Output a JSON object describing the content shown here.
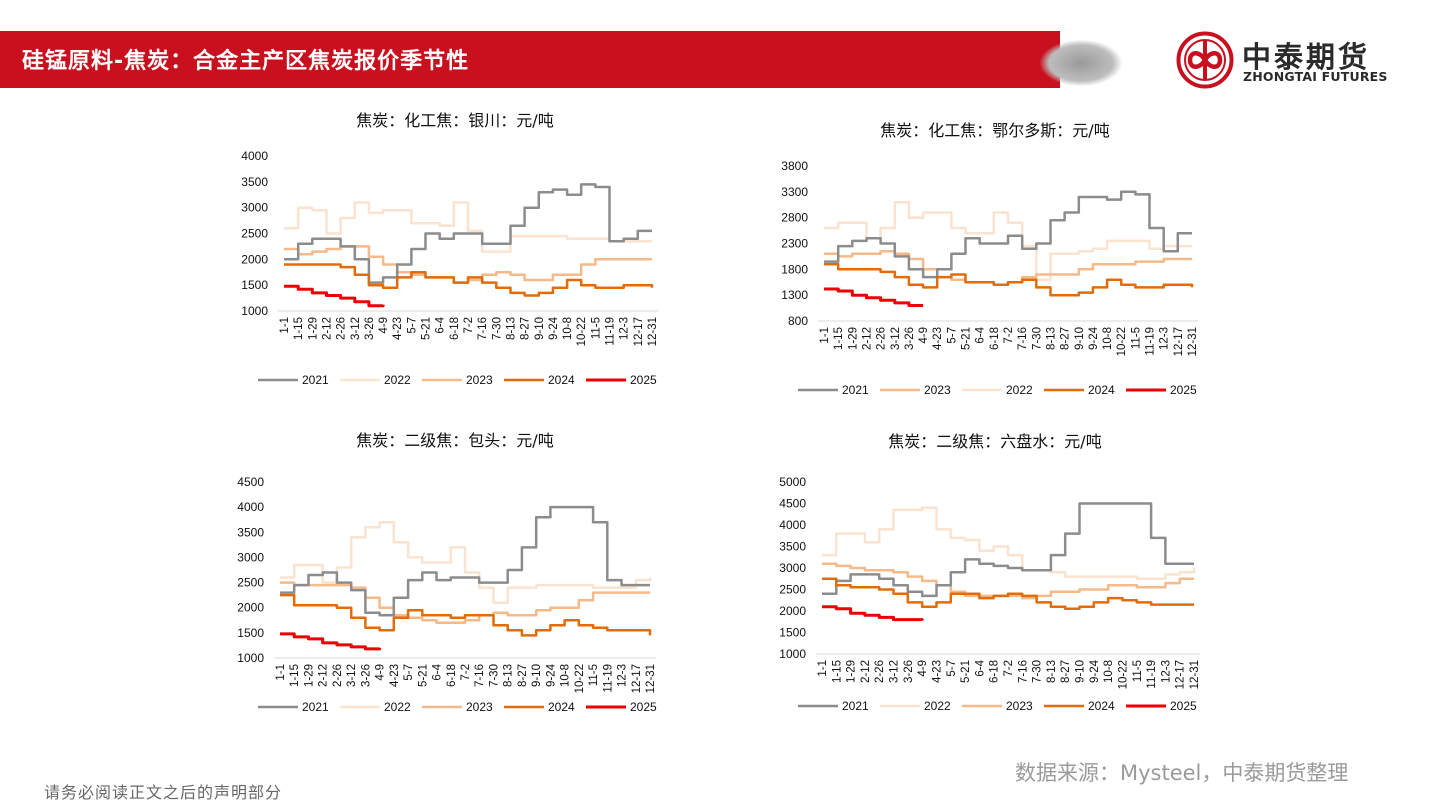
{
  "header": {
    "title": "硅锰原料-焦炭：合金主产区焦炭报价季节性"
  },
  "logo": {
    "name_cn": "中泰期货",
    "name_en": "ZHONGTAI FUTURES"
  },
  "footer": {
    "source": "数据来源：Mysteel，中泰期货整理",
    "disclaimer": "请务必阅读正文之后的声明部分"
  },
  "colors": {
    "2021": "#8c8c8c",
    "2022": "#fbe3cf",
    "2023": "#f5b98a",
    "2024": "#e36c0a",
    "2025": "#ee0000"
  },
  "chart_data": [
    {
      "type": "line",
      "title": "焦炭：化工焦：银川：元/吨",
      "x": [
        "1-1",
        "1-15",
        "1-29",
        "2-12",
        "2-26",
        "3-12",
        "3-26",
        "4-9",
        "4-23",
        "5-7",
        "5-21",
        "6-4",
        "6-18",
        "7-2",
        "7-16",
        "7-30",
        "8-13",
        "8-27",
        "9-10",
        "9-24",
        "10-8",
        "10-22",
        "11-5",
        "11-19",
        "12-3",
        "12-17",
        "12-31"
      ],
      "ylim": [
        1000,
        4000
      ],
      "yticks": [
        1000,
        1500,
        2000,
        2500,
        3000,
        3500,
        4000
      ],
      "legend": [
        "2021",
        "2022",
        "2023",
        "2024",
        "2025"
      ],
      "series": [
        {
          "name": "2021",
          "values": [
            2000,
            2300,
            2400,
            2400,
            2250,
            2000,
            1550,
            1650,
            1900,
            2200,
            2500,
            2400,
            2500,
            2500,
            2300,
            2300,
            2650,
            3000,
            3300,
            3350,
            3250,
            3450,
            3400,
            2350,
            2400,
            2550,
            2550
          ]
        },
        {
          "name": "2022",
          "values": [
            2600,
            3000,
            2950,
            2500,
            2800,
            3100,
            2900,
            2950,
            2950,
            2700,
            2700,
            2650,
            3100,
            2550,
            2150,
            2150,
            2450,
            2450,
            2450,
            2450,
            2400,
            2400,
            2400,
            2350,
            2350,
            2350,
            2350
          ]
        },
        {
          "name": "2023",
          "values": [
            2200,
            2100,
            2150,
            2200,
            2250,
            2250,
            2050,
            1900,
            1750,
            1700,
            1650,
            1650,
            1550,
            1600,
            1700,
            1750,
            1700,
            1600,
            1600,
            1700,
            1700,
            1900,
            2000,
            2000,
            2000,
            2000,
            2000
          ]
        },
        {
          "name": "2024",
          "values": [
            1900,
            1900,
            1900,
            1900,
            1850,
            1700,
            1500,
            1450,
            1650,
            1750,
            1650,
            1650,
            1550,
            1650,
            1550,
            1450,
            1350,
            1300,
            1350,
            1450,
            1600,
            1500,
            1450,
            1450,
            1500,
            1500,
            1450
          ]
        },
        {
          "name": "2025",
          "values": [
            1480,
            1420,
            1350,
            1300,
            1250,
            1180,
            1100,
            1120,
            null,
            null,
            null,
            null,
            null,
            null,
            null,
            null,
            null,
            null,
            null,
            null,
            null,
            null,
            null,
            null,
            null,
            null,
            null
          ]
        }
      ]
    },
    {
      "type": "line",
      "title": "焦炭：化工焦：鄂尔多斯：元/吨",
      "x": [
        "1-1",
        "1-15",
        "1-29",
        "2-12",
        "2-26",
        "3-12",
        "3-26",
        "4-9",
        "4-23",
        "5-7",
        "5-21",
        "6-4",
        "6-18",
        "7-2",
        "7-16",
        "7-30",
        "8-13",
        "8-27",
        "9-10",
        "9-24",
        "10-8",
        "10-22",
        "11-5",
        "11-19",
        "12-3",
        "12-17",
        "12-31"
      ],
      "ylim": [
        800,
        3800
      ],
      "yticks": [
        800,
        1300,
        1800,
        2300,
        2800,
        3300,
        3800
      ],
      "legend": [
        "2021",
        "2023",
        "2022",
        "2024",
        "2025"
      ],
      "series": [
        {
          "name": "2021",
          "values": [
            1950,
            2250,
            2350,
            2400,
            2300,
            2050,
            1800,
            1650,
            1800,
            2100,
            2400,
            2300,
            2300,
            2450,
            2200,
            2300,
            2750,
            2900,
            3200,
            3200,
            3150,
            3300,
            3250,
            2600,
            2150,
            2500,
            2500
          ]
        },
        {
          "name": "2023",
          "values": [
            2100,
            2050,
            2100,
            2100,
            2150,
            2100,
            2000,
            1800,
            1650,
            1600,
            1550,
            1550,
            1500,
            1550,
            1650,
            1700,
            1700,
            1700,
            1800,
            1900,
            1900,
            1900,
            1950,
            1950,
            2000,
            2000,
            2000
          ]
        },
        {
          "name": "2022",
          "values": [
            2600,
            2700,
            2700,
            2400,
            2600,
            3100,
            2800,
            2900,
            2900,
            2600,
            2500,
            2500,
            2900,
            2700,
            2250,
            1600,
            2100,
            2100,
            2150,
            2200,
            2350,
            2350,
            2350,
            2200,
            2250,
            2250,
            2250
          ]
        },
        {
          "name": "2024",
          "values": [
            1900,
            1800,
            1800,
            1800,
            1750,
            1650,
            1500,
            1450,
            1650,
            1700,
            1550,
            1550,
            1500,
            1550,
            1600,
            1450,
            1300,
            1300,
            1350,
            1450,
            1600,
            1500,
            1450,
            1450,
            1500,
            1500,
            1450
          ]
        },
        {
          "name": "2025",
          "values": [
            1420,
            1380,
            1300,
            1250,
            1200,
            1150,
            1100,
            1100,
            null,
            null,
            null,
            null,
            null,
            null,
            null,
            null,
            null,
            null,
            null,
            null,
            null,
            null,
            null,
            null,
            null,
            null,
            null
          ]
        }
      ]
    },
    {
      "type": "line",
      "title": "焦炭：二级焦：包头：元/吨",
      "x": [
        "1-1",
        "1-15",
        "1-29",
        "2-12",
        "2-26",
        "3-12",
        "3-26",
        "4-9",
        "4-23",
        "5-7",
        "5-21",
        "6-4",
        "6-18",
        "7-2",
        "7-16",
        "7-30",
        "8-13",
        "8-27",
        "9-10",
        "9-24",
        "10-8",
        "10-22",
        "11-5",
        "11-19",
        "12-3",
        "12-17",
        "12-31"
      ],
      "ylim": [
        1000,
        4500
      ],
      "yticks": [
        1000,
        1500,
        2000,
        2500,
        3000,
        3500,
        4000,
        4500
      ],
      "legend": [
        "2021",
        "2022",
        "2023",
        "2024",
        "2025"
      ],
      "series": [
        {
          "name": "2021",
          "values": [
            2300,
            2450,
            2650,
            2700,
            2500,
            2350,
            1900,
            1850,
            2200,
            2550,
            2700,
            2550,
            2600,
            2600,
            2500,
            2500,
            2750,
            3200,
            3800,
            4000,
            4000,
            4000,
            3700,
            2550,
            2450,
            2450,
            2450
          ]
        },
        {
          "name": "2022",
          "values": [
            2600,
            2850,
            2850,
            2500,
            2800,
            3400,
            3600,
            3700,
            3300,
            3000,
            2900,
            2900,
            3200,
            2700,
            2400,
            2100,
            2400,
            2400,
            2450,
            2450,
            2450,
            2450,
            2400,
            2400,
            2400,
            2550,
            2600
          ]
        },
        {
          "name": "2023",
          "values": [
            2500,
            2450,
            2450,
            2450,
            2450,
            2400,
            2200,
            2000,
            1850,
            1800,
            1750,
            1700,
            1700,
            1750,
            1850,
            1900,
            1850,
            1850,
            1950,
            2000,
            2000,
            2150,
            2300,
            2300,
            2300,
            2300,
            2300
          ]
        },
        {
          "name": "2024",
          "values": [
            2250,
            2050,
            2050,
            2050,
            2000,
            1800,
            1600,
            1550,
            1800,
            1950,
            1850,
            1850,
            1800,
            1850,
            1850,
            1650,
            1550,
            1450,
            1550,
            1650,
            1750,
            1650,
            1600,
            1550,
            1550,
            1550,
            1450
          ]
        },
        {
          "name": "2025",
          "values": [
            1480,
            1420,
            1380,
            1300,
            1260,
            1220,
            1180,
            1200,
            null,
            null,
            null,
            null,
            null,
            null,
            null,
            null,
            null,
            null,
            null,
            null,
            null,
            null,
            null,
            null,
            null,
            null,
            null
          ]
        }
      ]
    },
    {
      "type": "line",
      "title": "焦炭：二级焦：六盘水：元/吨",
      "x": [
        "1-1",
        "1-15",
        "1-29",
        "2-12",
        "2-26",
        "3-12",
        "3-26",
        "4-9",
        "4-23",
        "5-7",
        "5-21",
        "6-4",
        "6-18",
        "7-2",
        "7-16",
        "7-30",
        "8-13",
        "8-27",
        "9-10",
        "9-24",
        "10-8",
        "10-22",
        "11-5",
        "11-19",
        "12-3",
        "12-17",
        "12-31"
      ],
      "ylim": [
        1000,
        5000
      ],
      "yticks": [
        1000,
        1500,
        2000,
        2500,
        3000,
        3500,
        4000,
        4500,
        5000
      ],
      "legend": [
        "2021",
        "2022",
        "2023",
        "2024",
        "2025"
      ],
      "series": [
        {
          "name": "2021",
          "values": [
            2400,
            2700,
            2850,
            2850,
            2750,
            2600,
            2450,
            2350,
            2600,
            2900,
            3200,
            3100,
            3050,
            3000,
            2950,
            2950,
            3300,
            3800,
            4500,
            4500,
            4500,
            4500,
            4500,
            3700,
            3100,
            3100,
            3100
          ]
        },
        {
          "name": "2022",
          "values": [
            3300,
            3800,
            3800,
            3600,
            3900,
            4350,
            4350,
            4400,
            3900,
            3700,
            3650,
            3400,
            3500,
            3300,
            2950,
            2950,
            2900,
            2800,
            2800,
            2800,
            2800,
            2800,
            2750,
            2750,
            2850,
            2900,
            3000
          ]
        },
        {
          "name": "2023",
          "values": [
            3100,
            3050,
            3000,
            2950,
            2950,
            2900,
            2800,
            2700,
            2600,
            2450,
            2350,
            2350,
            2350,
            2350,
            2300,
            2350,
            2450,
            2450,
            2500,
            2500,
            2600,
            2600,
            2550,
            2550,
            2650,
            2750,
            2750
          ]
        },
        {
          "name": "2024",
          "values": [
            2750,
            2600,
            2550,
            2550,
            2500,
            2400,
            2200,
            2100,
            2200,
            2400,
            2400,
            2300,
            2350,
            2400,
            2350,
            2200,
            2100,
            2050,
            2100,
            2200,
            2300,
            2250,
            2200,
            2150,
            2150,
            2150,
            2150
          ]
        },
        {
          "name": "2025",
          "values": [
            2100,
            2050,
            1950,
            1900,
            1850,
            1800,
            1800,
            1780,
            null,
            null,
            null,
            null,
            null,
            null,
            null,
            null,
            null,
            null,
            null,
            null,
            null,
            null,
            null,
            null,
            null,
            null,
            null
          ]
        }
      ]
    }
  ]
}
